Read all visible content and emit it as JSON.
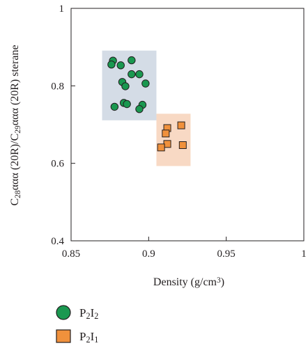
{
  "chart_data": {
    "type": "scatter",
    "xlabel_main": "Density (g/cm",
    "xlabel_sup": "3",
    "xlabel_end": ")",
    "ylabel_parts": [
      {
        "t": "C",
        "s": "n"
      },
      {
        "t": "28",
        "s": "sub"
      },
      {
        "t": "ααα (20R)/C",
        "s": "n"
      },
      {
        "t": "29",
        "s": "sub"
      },
      {
        "t": "ααα (20R) sterane",
        "s": "n"
      }
    ],
    "xlim": [
      0.85,
      1.0
    ],
    "ylim": [
      0.4,
      1.0
    ],
    "x_ticks": [
      0.85,
      0.9,
      0.95,
      1.0
    ],
    "x_tick_labels": [
      "0.85",
      "0.9",
      "0.95",
      "1"
    ],
    "y_ticks": [
      0.4,
      0.6,
      0.8,
      1.0
    ],
    "y_tick_labels": [
      "0.4",
      "0.6",
      "0.8",
      "1"
    ],
    "grid": false,
    "regions": [
      {
        "name": "P2I2 field",
        "x": [
          0.87,
          0.905
        ],
        "y": [
          0.711,
          0.891
        ],
        "color": "#d4dce6"
      },
      {
        "name": "P2I1 field",
        "x": [
          0.905,
          0.927
        ],
        "y": [
          0.593,
          0.728
        ],
        "color": "#f8d9c4"
      }
    ],
    "series": [
      {
        "name": "P2I2",
        "name_parts": [
          {
            "t": "P",
            "s": "n"
          },
          {
            "t": "2",
            "s": "sub"
          },
          {
            "t": "I",
            "s": "n"
          },
          {
            "t": "2",
            "s": "sub"
          }
        ],
        "marker": "circle",
        "color": "#1a9850",
        "points": [
          [
            0.877,
            0.865
          ],
          [
            0.876,
            0.855
          ],
          [
            0.889,
            0.866
          ],
          [
            0.882,
            0.853
          ],
          [
            0.889,
            0.83
          ],
          [
            0.894,
            0.83
          ],
          [
            0.883,
            0.81
          ],
          [
            0.885,
            0.799
          ],
          [
            0.898,
            0.806
          ],
          [
            0.878,
            0.746
          ],
          [
            0.884,
            0.756
          ],
          [
            0.886,
            0.753
          ],
          [
            0.896,
            0.751
          ],
          [
            0.894,
            0.74
          ]
        ]
      },
      {
        "name": "P2I1",
        "name_parts": [
          {
            "t": "P",
            "s": "n"
          },
          {
            "t": "2",
            "s": "sub"
          },
          {
            "t": "I",
            "s": "n"
          },
          {
            "t": "1",
            "s": "sub"
          }
        ],
        "marker": "square",
        "color": "#f0913c",
        "points": [
          [
            0.921,
            0.698
          ],
          [
            0.912,
            0.691
          ],
          [
            0.911,
            0.677
          ],
          [
            0.912,
            0.65
          ],
          [
            0.908,
            0.641
          ],
          [
            0.922,
            0.647
          ]
        ]
      }
    ]
  }
}
